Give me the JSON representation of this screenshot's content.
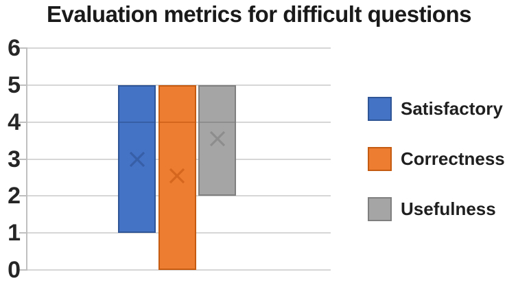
{
  "chart_data": {
    "type": "box",
    "title": "Evaluation metrics for difficult questions",
    "xlabel": "",
    "ylabel": "",
    "ylim": [
      0,
      6
    ],
    "yticks": [
      0,
      1,
      2,
      3,
      4,
      5,
      6
    ],
    "grid": true,
    "legend_position": "right",
    "colors": {
      "background": "#ffffff",
      "gridline": "#d6d6d6",
      "axis": "#bfbfbf",
      "tick_text": "#262626",
      "title_text": "#1a1a1a"
    },
    "series": [
      {
        "name": "Satisfactory",
        "box_min": 1,
        "box_max": 5,
        "median": 4,
        "mean": 3.0,
        "fill": "#4472C4",
        "border": "#2F5597"
      },
      {
        "name": "Correctness",
        "box_min": 0,
        "box_max": 5,
        "median": 4,
        "mean": 2.55,
        "fill": "#ED7D31",
        "border": "#C55A11"
      },
      {
        "name": "Usefulness",
        "box_min": 2,
        "box_max": 5,
        "median": 4,
        "mean": 3.55,
        "fill": "#A5A5A5",
        "border": "#7F7F7F"
      }
    ]
  }
}
